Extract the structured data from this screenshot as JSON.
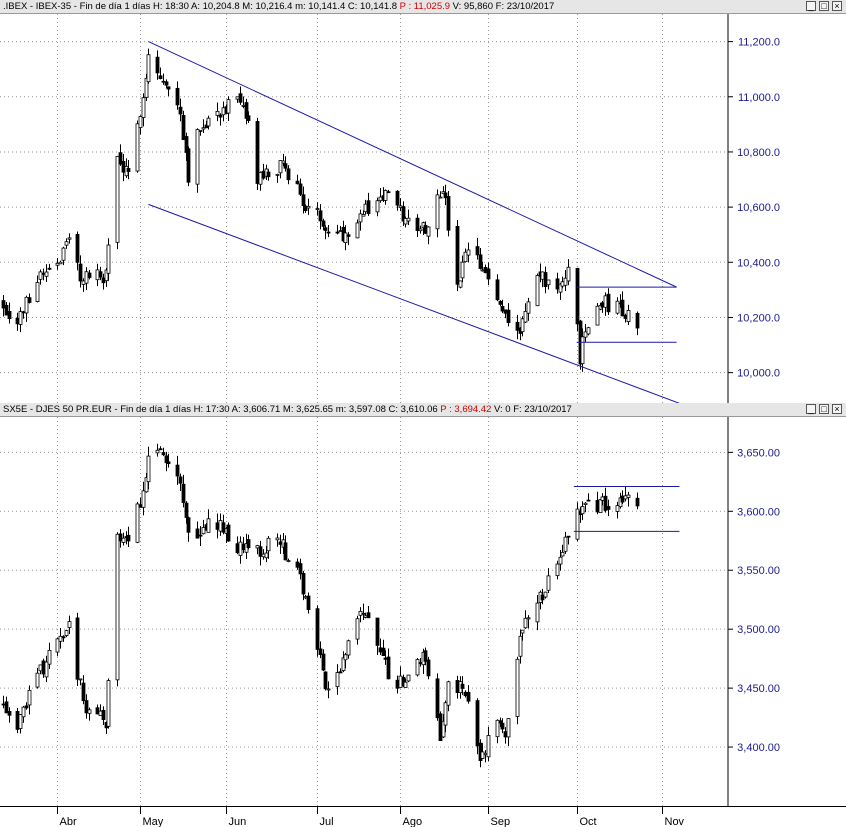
{
  "panels": [
    {
      "symbol": ".IBEX - IBEX-35",
      "subtitle": "Fin de día 1 días",
      "quote": [
        {
          "label": "H:",
          "value": "18:30"
        },
        {
          "label": "A:",
          "value": "10,204.8"
        },
        {
          "label": "M:",
          "value": "10,216.4"
        },
        {
          "label": "m:",
          "value": "10,141.4"
        },
        {
          "label": "C:",
          "value": "10,141.8"
        },
        {
          "label": "P :",
          "value": "11,025.9",
          "color": "#d40000"
        },
        {
          "label": "V:",
          "value": "95,860"
        },
        {
          "label": "F:",
          "value": "23/10/2017"
        }
      ]
    },
    {
      "symbol": "SX5E - DJES 50 PR.EUR",
      "subtitle": "Fin de día 1 días",
      "quote": [
        {
          "label": "H:",
          "value": "17:30"
        },
        {
          "label": "A:",
          "value": "3,606.71"
        },
        {
          "label": "M:",
          "value": "3,625.65"
        },
        {
          "label": "m:",
          "value": "3,597.08"
        },
        {
          "label": "C:",
          "value": "3,610.06"
        },
        {
          "label": "P :",
          "value": "3,694.42",
          "color": "#d40000"
        },
        {
          "label": "V:",
          "value": "0"
        },
        {
          "label": "F:",
          "value": "23/10/2017"
        }
      ]
    }
  ],
  "window_buttons": [
    "_",
    "□",
    "×"
  ],
  "chart_data": [
    {
      "type": "candlestick",
      "name": ".IBEX - IBEX-35",
      "y_ticks": [
        "11,200.0",
        "11,000.0",
        "10,800.0",
        "10,600.0",
        "10,400.0",
        "10,200.0",
        "10,000.0"
      ],
      "y_tick_values": [
        11200,
        11000,
        10800,
        10600,
        10400,
        10200,
        10000
      ],
      "ylim": [
        9890,
        11300
      ],
      "x_ticks": [
        "Abr",
        "May",
        "Jun",
        "Jul",
        "Ago",
        "Sep",
        "Oct",
        "Nov"
      ],
      "x_tick_dates": [
        "2017-04-03",
        "2017-05-02",
        "2017-06-01",
        "2017-07-03",
        "2017-08-01",
        "2017-09-01",
        "2017-10-02",
        "2017-11-01"
      ],
      "x_range": [
        "2017-03-14",
        "2017-11-24"
      ],
      "anchors": [
        [
          "2017-03-15",
          10250
        ],
        [
          "2017-03-20",
          10180
        ],
        [
          "2017-03-27",
          10350
        ],
        [
          "2017-04-04",
          10420
        ],
        [
          "2017-04-07",
          10480
        ],
        [
          "2017-04-11",
          10350
        ],
        [
          "2017-04-20",
          10350
        ],
        [
          "2017-04-24",
          10780
        ],
        [
          "2017-04-28",
          10700
        ],
        [
          "2017-05-05",
          11150
        ],
        [
          "2017-05-10",
          11050
        ],
        [
          "2017-05-16",
          10950
        ],
        [
          "2017-05-19",
          10720
        ],
        [
          "2017-05-23",
          10900
        ],
        [
          "2017-05-30",
          10950
        ],
        [
          "2017-06-05",
          10980
        ],
        [
          "2017-06-09",
          10900
        ],
        [
          "2017-06-12",
          10700
        ],
        [
          "2017-06-22",
          10750
        ],
        [
          "2017-06-29",
          10600
        ],
        [
          "2017-07-05",
          10550
        ],
        [
          "2017-07-12",
          10500
        ],
        [
          "2017-07-19",
          10580
        ],
        [
          "2017-07-27",
          10650
        ],
        [
          "2017-08-03",
          10550
        ],
        [
          "2017-08-10",
          10530
        ],
        [
          "2017-08-16",
          10680
        ],
        [
          "2017-08-21",
          10300
        ],
        [
          "2017-08-25",
          10450
        ],
        [
          "2017-08-31",
          10350
        ],
        [
          "2017-09-05",
          10250
        ],
        [
          "2017-09-12",
          10150
        ],
        [
          "2017-09-18",
          10350
        ],
        [
          "2017-09-27",
          10300
        ],
        [
          "2017-09-29",
          10380
        ],
        [
          "2017-10-02",
          10200
        ],
        [
          "2017-10-03",
          10050
        ],
        [
          "2017-10-05",
          10150
        ],
        [
          "2017-10-10",
          10250
        ],
        [
          "2017-10-16",
          10250
        ],
        [
          "2017-10-20",
          10200
        ],
        [
          "2017-10-23",
          10142
        ]
      ],
      "seed": 7,
      "volatility": 55,
      "trend_lines": [
        {
          "color": "#1a1aaa",
          "points": [
            [
              "2017-05-05",
              11200
            ],
            [
              "2017-11-06",
              10310
            ]
          ]
        },
        {
          "color": "#1a1aaa",
          "points": [
            [
              "2017-05-05",
              10610
            ],
            [
              "2017-11-17",
              9850
            ]
          ]
        },
        {
          "color": "#1a1aaa",
          "points": [
            [
              "2017-10-02",
              10310
            ],
            [
              "2017-11-06",
              10310
            ]
          ]
        },
        {
          "color": "#1a1aaa",
          "points": [
            [
              "2017-10-02",
              10110
            ],
            [
              "2017-11-06",
              10110
            ]
          ]
        }
      ]
    },
    {
      "type": "candlestick",
      "name": "SX5E - DJES 50 PR.EUR",
      "y_ticks": [
        "3,650.00",
        "3,600.00",
        "3,550.00",
        "3,500.00",
        "3,450.00",
        "3,400.00"
      ],
      "y_tick_values": [
        3650,
        3600,
        3550,
        3500,
        3450,
        3400
      ],
      "ylim": [
        3350,
        3680
      ],
      "x_ticks": [
        "Abr",
        "May",
        "Jun",
        "Jul",
        "Ago",
        "Sep",
        "Oct",
        "Nov"
      ],
      "x_tick_dates": [
        "2017-04-03",
        "2017-05-02",
        "2017-06-01",
        "2017-07-03",
        "2017-08-01",
        "2017-09-01",
        "2017-10-02",
        "2017-11-01"
      ],
      "x_range": [
        "2017-03-14",
        "2017-11-24"
      ],
      "anchors": [
        [
          "2017-03-15",
          3440
        ],
        [
          "2017-03-20",
          3420
        ],
        [
          "2017-03-27",
          3460
        ],
        [
          "2017-04-04",
          3490
        ],
        [
          "2017-04-07",
          3500
        ],
        [
          "2017-04-13",
          3430
        ],
        [
          "2017-04-20",
          3420
        ],
        [
          "2017-04-24",
          3580
        ],
        [
          "2017-04-28",
          3570
        ],
        [
          "2017-05-05",
          3640
        ],
        [
          "2017-05-10",
          3650
        ],
        [
          "2017-05-16",
          3630
        ],
        [
          "2017-05-19",
          3580
        ],
        [
          "2017-05-29",
          3590
        ],
        [
          "2017-06-05",
          3570
        ],
        [
          "2017-06-12",
          3565
        ],
        [
          "2017-06-19",
          3580
        ],
        [
          "2017-06-27",
          3540
        ],
        [
          "2017-06-30",
          3520
        ],
        [
          "2017-07-06",
          3450
        ],
        [
          "2017-07-12",
          3470
        ],
        [
          "2017-07-19",
          3520
        ],
        [
          "2017-07-26",
          3470
        ],
        [
          "2017-08-02",
          3450
        ],
        [
          "2017-08-10",
          3480
        ],
        [
          "2017-08-15",
          3410
        ],
        [
          "2017-08-18",
          3460
        ],
        [
          "2017-08-25",
          3440
        ],
        [
          "2017-08-29",
          3390
        ],
        [
          "2017-09-04",
          3420
        ],
        [
          "2017-09-07",
          3410
        ],
        [
          "2017-09-12",
          3500
        ],
        [
          "2017-09-18",
          3520
        ],
        [
          "2017-09-25",
          3555
        ],
        [
          "2017-10-02",
          3600
        ],
        [
          "2017-10-06",
          3605
        ],
        [
          "2017-10-12",
          3608
        ],
        [
          "2017-10-18",
          3612
        ],
        [
          "2017-10-23",
          3610
        ]
      ],
      "seed": 19,
      "volatility": 14,
      "trend_lines": [
        {
          "color": "#1a1aaa",
          "points": [
            [
              "2017-10-01",
              3621
            ],
            [
              "2017-11-07",
              3621
            ]
          ]
        },
        {
          "color": "#1a1aaa",
          "points": [
            [
              "2017-10-01",
              3583
            ],
            [
              "2017-11-07",
              3583
            ]
          ]
        }
      ]
    }
  ]
}
